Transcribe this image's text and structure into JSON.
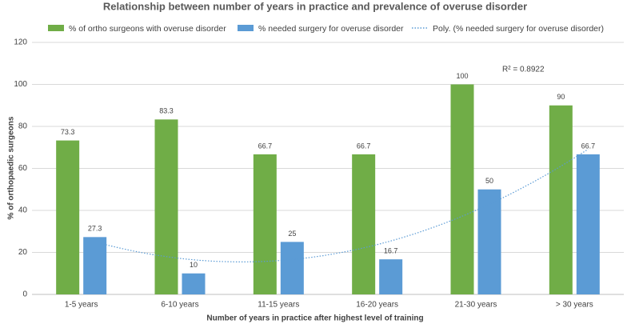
{
  "chart_data": {
    "type": "bar",
    "title": "Relationship between number of years in practice and prevalence of overuse disorder",
    "x_label": "Number of years in practice after highest level of training",
    "y_label": "% of orthopaedic surgeons",
    "categories": [
      "1-5 years",
      "6-10 years",
      "11-15 years",
      "16-20 years",
      "21-30 years",
      "> 30 years"
    ],
    "series": [
      {
        "name": "% of ortho surgeons with overuse disorder",
        "color": "#70ad47",
        "values": [
          73.3,
          83.3,
          66.7,
          66.7,
          100,
          90
        ]
      },
      {
        "name": "% needed surgery for overuse disorder",
        "color": "#5b9bd5",
        "values": [
          27.3,
          10,
          25,
          16.7,
          50,
          66.7
        ]
      }
    ],
    "trendline": {
      "name": "Poly. (% needed surgery for overuse disorder)",
      "series": 1,
      "order": 2,
      "color": "#5b9bd5",
      "r2_label": "R² = 0.8922"
    },
    "ylim": [
      0,
      120
    ],
    "yticks": [
      0,
      20,
      40,
      60,
      80,
      100,
      120
    ],
    "grid": true
  }
}
